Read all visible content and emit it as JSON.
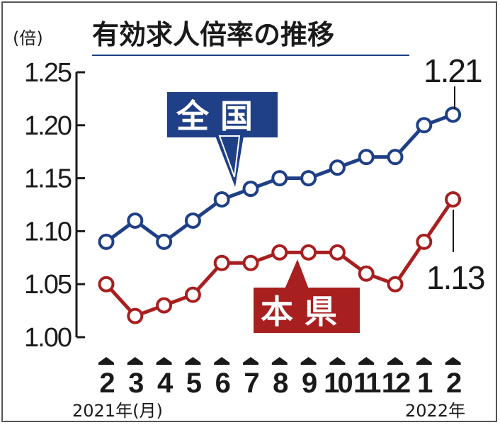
{
  "title": "有効求人倍率の推移",
  "unit_label": "(倍)",
  "x_caption_start": "2021年(月)",
  "x_caption_end": "2022年",
  "chart_data": {
    "type": "line",
    "categories": [
      "2",
      "3",
      "4",
      "5",
      "6",
      "7",
      "8",
      "9",
      "10",
      "11",
      "12",
      "1",
      "2"
    ],
    "ylim": [
      1.0,
      1.25
    ],
    "yticks": [
      "1.00",
      "1.05",
      "1.10",
      "1.15",
      "1.20",
      "1.25"
    ],
    "grid": false,
    "series": [
      {
        "name": "全 国",
        "color": "#1f3f86",
        "values": [
          1.09,
          1.11,
          1.09,
          1.11,
          1.13,
          1.14,
          1.15,
          1.15,
          1.16,
          1.17,
          1.17,
          1.2,
          1.21
        ],
        "end_label": "1.21"
      },
      {
        "name": "本 県",
        "color": "#a81f1f",
        "values": [
          1.05,
          1.02,
          1.03,
          1.04,
          1.07,
          1.07,
          1.08,
          1.08,
          1.08,
          1.06,
          1.05,
          1.09,
          1.13
        ],
        "end_label": "1.13"
      }
    ]
  }
}
